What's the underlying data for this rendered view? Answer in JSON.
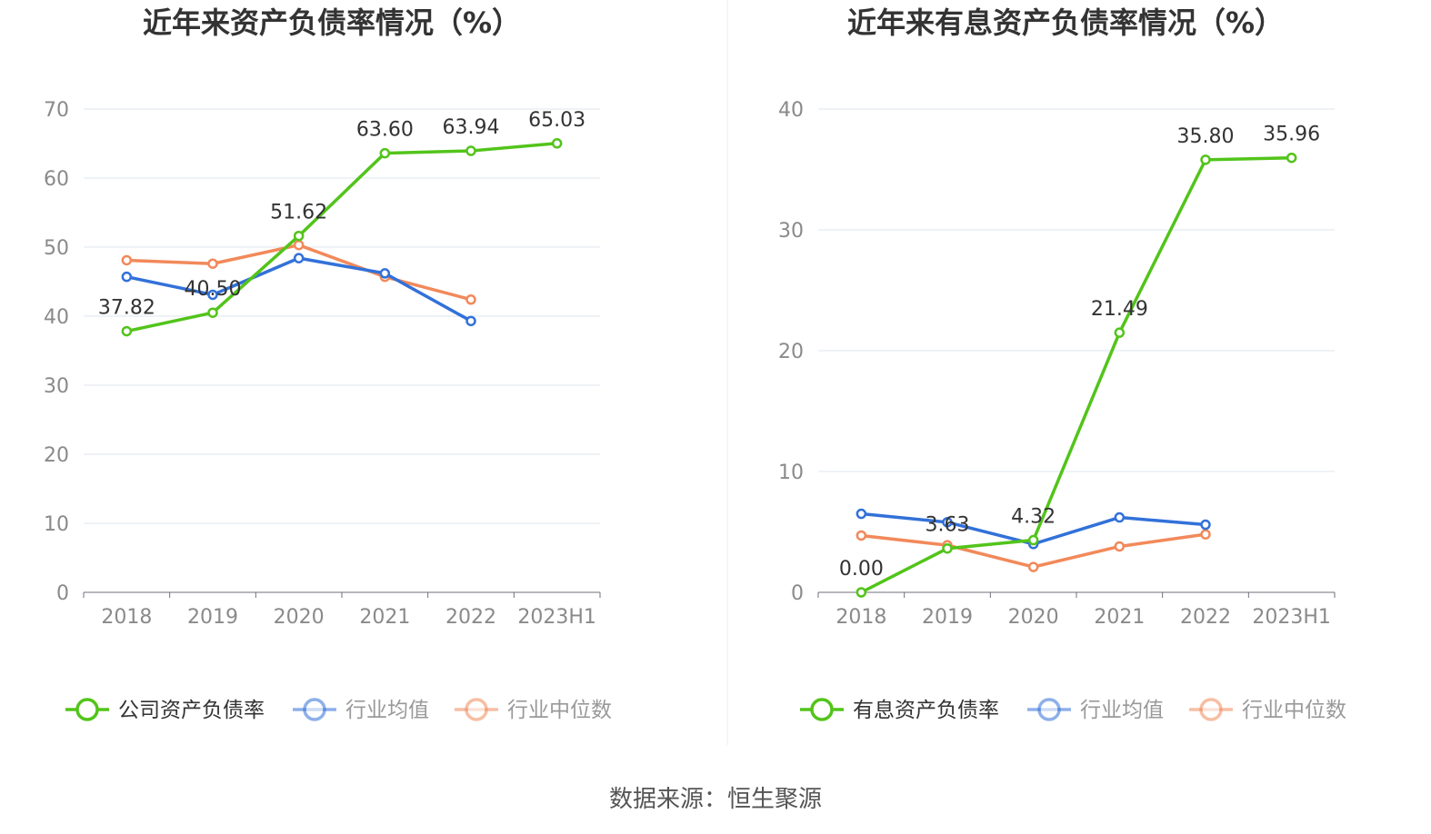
{
  "source": "数据来源：恒生聚源",
  "chart_data": [
    {
      "type": "line",
      "title": "近年来资产负债率情况（%）",
      "categories": [
        "2018",
        "2019",
        "2020",
        "2021",
        "2022",
        "2023H1"
      ],
      "ylim": [
        0,
        70
      ],
      "yticks": [
        0,
        10,
        20,
        30,
        40,
        50,
        60,
        70
      ],
      "grid": true,
      "legend_position": "bottom",
      "series": [
        {
          "name": "公司资产负债率",
          "color": "#52c41a",
          "labels": true,
          "values": [
            37.82,
            40.5,
            51.62,
            63.6,
            63.94,
            65.03
          ],
          "labelText": [
            "37.82",
            "40.50",
            "51.62",
            "63.60",
            "63.94",
            "65.03"
          ]
        },
        {
          "name": "行业均值",
          "color": "#3271d9",
          "labels": false,
          "values": [
            45.7,
            43.1,
            48.4,
            46.2,
            39.3,
            null
          ]
        },
        {
          "name": "行业中位数",
          "color": "#f2895a",
          "labels": false,
          "values": [
            48.1,
            47.6,
            50.3,
            45.7,
            42.4,
            null
          ]
        }
      ]
    },
    {
      "type": "line",
      "title": "近年来有息资产负债率情况（%）",
      "categories": [
        "2018",
        "2019",
        "2020",
        "2021",
        "2022",
        "2023H1"
      ],
      "ylim": [
        0,
        40
      ],
      "yticks": [
        0,
        10,
        20,
        30,
        40
      ],
      "grid": true,
      "legend_position": "bottom",
      "series": [
        {
          "name": "有息资产负债率",
          "color": "#52c41a",
          "labels": true,
          "values": [
            0.0,
            3.63,
            4.32,
            21.49,
            35.8,
            35.96
          ],
          "labelText": [
            "0.00",
            "3.63",
            "4.32",
            "21.49",
            "35.80",
            "35.96"
          ]
        },
        {
          "name": "行业均值",
          "color": "#3271d9",
          "labels": false,
          "values": [
            6.5,
            5.8,
            4.0,
            6.2,
            5.6,
            null
          ]
        },
        {
          "name": "行业中位数",
          "color": "#f2895a",
          "labels": false,
          "values": [
            4.7,
            3.9,
            2.1,
            3.8,
            4.8,
            null
          ]
        }
      ]
    }
  ]
}
